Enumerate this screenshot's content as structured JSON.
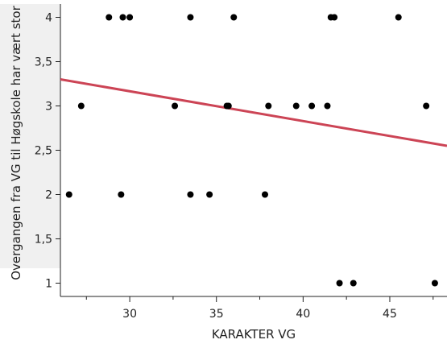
{
  "chart_data": {
    "type": "scatter",
    "title": "",
    "xlabel": "KARAKTER VG",
    "ylabel": "Overgangen fra VG til Høgskole har vært stor",
    "xlim": [
      26,
      48.3
    ],
    "ylim": [
      0.85,
      4.15
    ],
    "x_ticks": [
      30,
      35,
      40,
      45
    ],
    "x_tick_labels": [
      "30",
      "35",
      "40",
      "45"
    ],
    "y_ticks": [
      1,
      1.5,
      2,
      2.5,
      3,
      3.5,
      4
    ],
    "y_tick_labels": [
      "1",
      "1,5",
      "2",
      "2,5",
      "3",
      "3,5",
      "4"
    ],
    "grid": false,
    "series": [
      {
        "points": [
          [
            26.5,
            2
          ],
          [
            27.2,
            3
          ],
          [
            28.8,
            4
          ],
          [
            29.5,
            2
          ],
          [
            29.6,
            4
          ],
          [
            30.0,
            4
          ],
          [
            32.6,
            3
          ],
          [
            33.5,
            4
          ],
          [
            33.5,
            2
          ],
          [
            34.6,
            2
          ],
          [
            35.6,
            3
          ],
          [
            35.7,
            3
          ],
          [
            36.0,
            4
          ],
          [
            37.8,
            2
          ],
          [
            38.0,
            3
          ],
          [
            39.6,
            3
          ],
          [
            40.5,
            3
          ],
          [
            41.4,
            3
          ],
          [
            41.6,
            4
          ],
          [
            41.8,
            4
          ],
          [
            42.1,
            1
          ],
          [
            42.9,
            1
          ],
          [
            45.5,
            4
          ],
          [
            47.1,
            3
          ],
          [
            47.6,
            1
          ]
        ],
        "color": "#000000"
      }
    ],
    "fit_line": {
      "x": [
        26,
        48.3
      ],
      "y": [
        3.3,
        2.55
      ],
      "color": "#cc4455"
    }
  }
}
